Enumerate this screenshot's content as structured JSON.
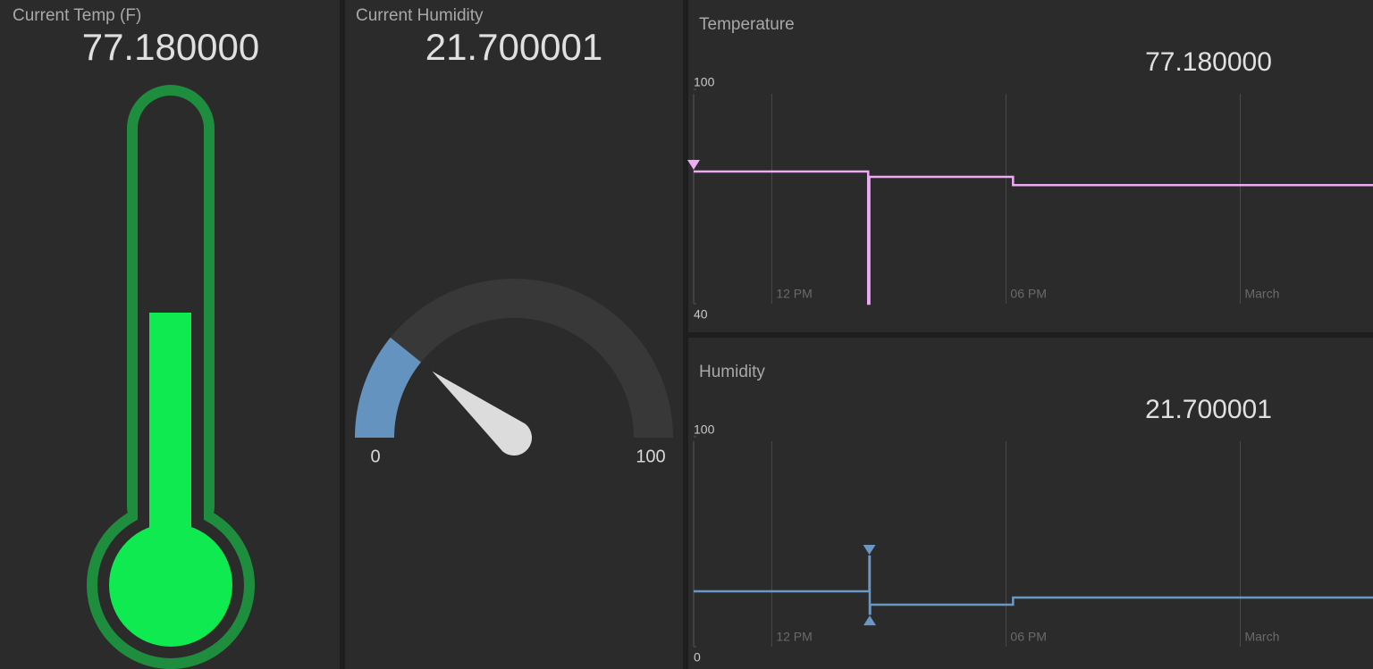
{
  "thermometer": {
    "title": "Current Temp (F)",
    "reading": "77.180000"
  },
  "gauge": {
    "title": "Current Humidity",
    "value": 21.700001,
    "min": 0,
    "max": 100,
    "color": "#6593c0"
  },
  "temperature": {
    "chart_data": {
      "type": "line",
      "title": "Temperature",
      "value_label": "77.180000",
      "step": true,
      "x": [
        10,
        14.47,
        14.5,
        18.18,
        27.4
      ],
      "series": [
        {
          "color": "#eeaaf5",
          "values": [
            77,
            40,
            75.5,
            73.2,
            73.2
          ]
        }
      ],
      "xlim": [
        10,
        27.4
      ],
      "ylim": [
        40,
        100
      ],
      "xticks": [
        {
          "value": 12,
          "label": "12 PM"
        },
        {
          "value": 18,
          "label": "06 PM"
        },
        {
          "value": 24,
          "label": "March"
        }
      ],
      "yticks": [
        40,
        100
      ]
    }
  },
  "humidity": {
    "chart_data": {
      "type": "line",
      "title": "Humidity",
      "value_label": "21.700001",
      "step": true,
      "x": [
        10,
        14.5,
        14.51,
        14.52,
        18.18,
        27.4
      ],
      "series": [
        {
          "color": "#6a97c4",
          "values": [
            26.4,
            43,
            15.7,
            20,
            23.4,
            23.4
          ]
        }
      ],
      "xlim": [
        10,
        27.4
      ],
      "ylim": [
        0,
        100
      ],
      "xticks": [
        {
          "value": 12,
          "label": "12 PM"
        },
        {
          "value": 18,
          "label": "06 PM"
        },
        {
          "value": 24,
          "label": "March"
        }
      ],
      "yticks": [
        0,
        100
      ]
    }
  }
}
